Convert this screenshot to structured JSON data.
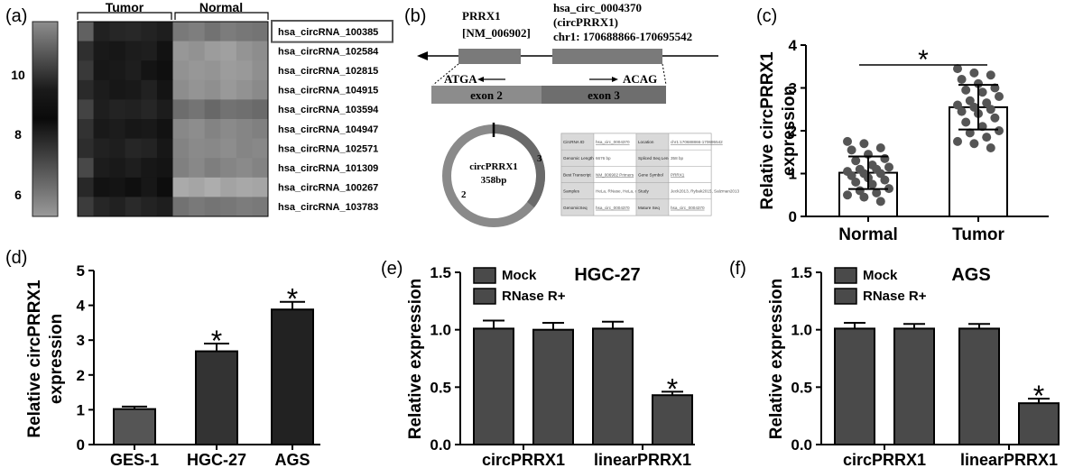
{
  "panels": {
    "a": "(a)",
    "b": "(b)",
    "c": "(c)",
    "d": "(d)",
    "e": "(e)",
    "f": "(f)"
  },
  "heatmap": {
    "group_labels": [
      "Tumor",
      "Normal"
    ],
    "row_labels": [
      "hsa_circRNA_100385",
      "hsa_circRNA_102584",
      "hsa_circRNA_102815",
      "hsa_circRNA_104915",
      "hsa_circRNA_103594",
      "hsa_circRNA_104947",
      "hsa_circRNA_102571",
      "hsa_circRNA_101309",
      "hsa_circRNA_100267",
      "hsa_circRNA_103783"
    ],
    "highlighted_row": 0,
    "colorbar_ticks": [
      "10",
      "8",
      "6"
    ],
    "color_low": "#9a9a9a",
    "color_high": "#111111",
    "values": [
      [
        8.6,
        11.2,
        11.0,
        10.9,
        11.1,
        11.3,
        7.6,
        7.4,
        7.9,
        7.5,
        7.7,
        7.8
      ],
      [
        10.6,
        11.5,
        11.6,
        11.4,
        11.3,
        11.8,
        6.4,
        6.6,
        6.2,
        6.0,
        6.5,
        6.8
      ],
      [
        10.2,
        11.6,
        11.5,
        11.3,
        11.7,
        11.9,
        6.6,
        6.4,
        6.5,
        6.2,
        6.3,
        6.7
      ],
      [
        10.8,
        11.4,
        11.6,
        11.5,
        11.2,
        11.7,
        6.8,
        6.5,
        6.7,
        6.3,
        6.6,
        6.9
      ],
      [
        9.8,
        11.3,
        11.1,
        11.2,
        11.0,
        11.4,
        8.1,
        7.8,
        8.3,
        7.9,
        8.0,
        8.2
      ],
      [
        10.5,
        11.5,
        11.4,
        11.6,
        11.5,
        11.8,
        7.0,
        6.8,
        7.2,
        6.9,
        7.1,
        7.3
      ],
      [
        10.7,
        11.2,
        11.3,
        11.0,
        11.1,
        11.6,
        7.2,
        6.9,
        7.0,
        6.8,
        7.1,
        7.0
      ],
      [
        9.6,
        11.4,
        11.5,
        11.3,
        11.6,
        11.7,
        7.3,
        7.0,
        7.4,
        7.1,
        6.9,
        7.2
      ],
      [
        10.9,
        11.8,
        11.7,
        11.9,
        11.6,
        12.0,
        5.6,
        5.8,
        5.5,
        5.9,
        5.7,
        5.8
      ],
      [
        10.1,
        11.0,
        11.2,
        10.8,
        11.1,
        11.3,
        7.9,
        7.6,
        7.8,
        7.7,
        7.5,
        7.6
      ]
    ]
  },
  "gene_diagram": {
    "gene_name": "PRRX1",
    "gene_accession": "[NM_006902]",
    "circ_id": "hsa_circ_0004370",
    "circ_alias": "(circPRRX1)",
    "circ_location": "chr1: 170688866-170695542",
    "left_junction": "ATGA",
    "right_junction": "ACAG",
    "exon_a": "exon 2",
    "exon_b": "exon 3",
    "circle_name": "circPRRX1",
    "circle_size": "358bp",
    "circle_mark_a": "2",
    "circle_mark_b": "3",
    "table_rows": [
      [
        "CircRNA ID",
        "hsa_circ_0004370",
        "Location",
        "chr1:170688866-170695542"
      ],
      [
        "Genomic Length",
        "6676 bp",
        "Spliced Seq Length",
        "358 bp"
      ],
      [
        "Best Transcript",
        "NM_006902  Primers",
        "Gene Symbol",
        "PRRX1"
      ],
      [
        "Samples",
        "HeLa, RNase, HeLa, control, SK, Slinshna, cerebellum",
        "Study",
        "Jeck2013, Rybak2015, Salzman2013"
      ],
      [
        "GenomicSeq",
        "hsa_circ_0004370",
        "Mature Seq",
        "hsa_circ_0004370"
      ]
    ]
  },
  "chart_data": [
    {
      "id": "c",
      "type": "bar",
      "categories": [
        "Normal",
        "Tumor"
      ],
      "values": [
        1.02,
        2.55
      ],
      "errors": [
        0.38,
        0.52
      ],
      "points": [
        [
          1.75,
          1.7,
          1.6,
          1.55,
          1.45,
          1.35,
          1.3,
          1.2,
          1.15,
          1.1,
          1.1,
          1.05,
          1.0,
          1.0,
          0.95,
          0.9,
          0.85,
          0.8,
          0.75,
          0.65,
          0.6,
          0.55,
          0.5,
          0.45,
          0.35
        ],
        [
          3.45,
          3.35,
          3.3,
          3.2,
          3.1,
          3.0,
          2.95,
          2.9,
          2.8,
          2.7,
          2.65,
          2.6,
          2.55,
          2.5,
          2.45,
          2.4,
          2.3,
          2.2,
          2.1,
          2.0,
          1.95,
          1.85,
          1.75,
          1.7,
          1.6
        ]
      ],
      "bar_fill": [
        "#ffffff",
        "#ffffff"
      ],
      "point_color": "#555555",
      "ylabel_lines": [
        "Relative circPRRX1",
        "expression"
      ],
      "ylim": [
        0,
        4
      ],
      "yticks": [
        "0",
        "1",
        "2",
        "3",
        "4"
      ],
      "significance": "*"
    },
    {
      "id": "d",
      "type": "bar",
      "categories": [
        "GES-1",
        "HGC-27",
        "AGS"
      ],
      "values": [
        1.02,
        2.68,
        3.88
      ],
      "errors": [
        0.07,
        0.22,
        0.22
      ],
      "bar_fill": [
        "#555555",
        "#333333",
        "#222222"
      ],
      "stars": [
        "",
        "*",
        "*"
      ],
      "ylabel_lines": [
        "Relative circPRRX1",
        "expression"
      ],
      "ylim": [
        0,
        5
      ],
      "yticks": [
        "0",
        "1",
        "2",
        "3",
        "4",
        "5"
      ]
    },
    {
      "id": "e",
      "type": "bar",
      "title": "HGC-27",
      "categories": [
        "circPRRX1",
        "linearPRRX1"
      ],
      "series": [
        {
          "name": "Mock",
          "values": [
            1.01,
            1.01
          ],
          "errors": [
            0.07,
            0.06
          ]
        },
        {
          "name": "RNase R+",
          "values": [
            1.0,
            0.43
          ],
          "errors": [
            0.06,
            0.03
          ]
        }
      ],
      "stars": [
        [
          "",
          ""
        ],
        [
          "",
          "*"
        ]
      ],
      "colors": [
        "#4a4a4a",
        "#4a4a4a"
      ],
      "ylabel": "Relative expression",
      "ylim": [
        0,
        1.5
      ],
      "yticks": [
        "0.0",
        "0.5",
        "1.0",
        "1.5"
      ]
    },
    {
      "id": "f",
      "type": "bar",
      "title": "AGS",
      "categories": [
        "circPRRX1",
        "linearPRRX1"
      ],
      "series": [
        {
          "name": "Mock",
          "values": [
            1.01,
            1.01
          ],
          "errors": [
            0.05,
            0.04
          ]
        },
        {
          "name": "RNase R+",
          "values": [
            1.01,
            0.36
          ],
          "errors": [
            0.04,
            0.04
          ]
        }
      ],
      "stars": [
        [
          "",
          ""
        ],
        [
          "",
          "*"
        ]
      ],
      "colors": [
        "#4a4a4a",
        "#4a4a4a"
      ],
      "ylabel": "Relative expression",
      "ylim": [
        0,
        1.5
      ],
      "yticks": [
        "0.0",
        "0.5",
        "1.0",
        "1.5"
      ]
    }
  ]
}
